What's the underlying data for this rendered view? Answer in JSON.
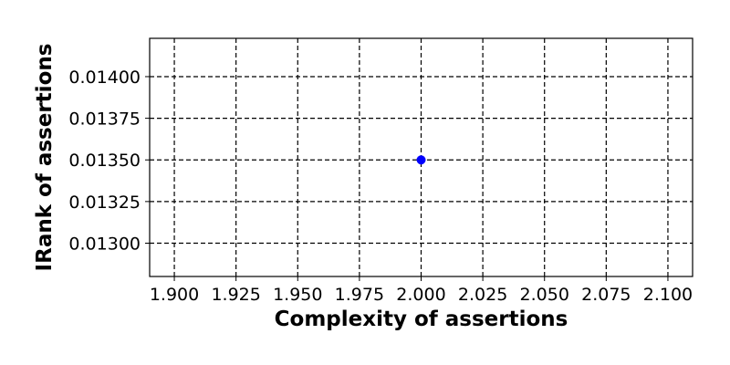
{
  "chart_data": {
    "type": "scatter",
    "title": "",
    "xlabel": "Complexity of assertions",
    "ylabel": "IRank of assertions",
    "xlim": [
      1.89,
      2.11
    ],
    "ylim": [
      0.0128,
      0.01423
    ],
    "xticks": [
      "1.900",
      "1.925",
      "1.950",
      "1.975",
      "2.000",
      "2.025",
      "2.050",
      "2.075",
      "2.100"
    ],
    "yticks": [
      "0.01300",
      "0.01325",
      "0.01350",
      "0.01375",
      "0.01400"
    ],
    "grid": true,
    "grid_style": "dashed",
    "series": [
      {
        "x": [
          2.0
        ],
        "y": [
          0.0135
        ],
        "color": "#0000ff",
        "marker": "circle"
      }
    ]
  }
}
